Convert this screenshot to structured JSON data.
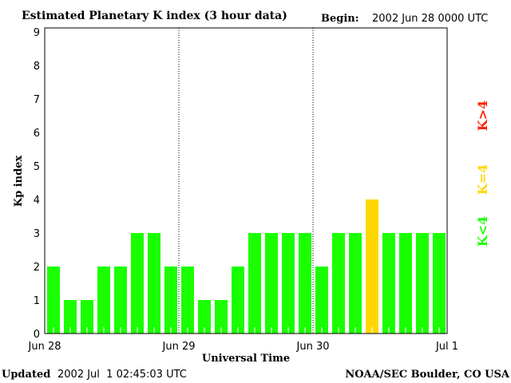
{
  "chart_data": {
    "type": "bar",
    "title": "Estimated Planetary K index (3 hour data)",
    "begin_label": "Begin:",
    "begin_value": "2002 Jun 28 0000 UTC",
    "xlabel": "Universal Time",
    "ylabel": "Kp index",
    "ylim": [
      0,
      9
    ],
    "yticks": [
      "0",
      "1",
      "2",
      "3",
      "4",
      "5",
      "6",
      "7",
      "8",
      "9"
    ],
    "xticks": [
      "Jun 28",
      "Jun 29",
      "Jun 30",
      "Jul 1"
    ],
    "values": [
      2,
      1,
      1,
      2,
      2,
      3,
      3,
      2,
      2,
      1,
      1,
      2,
      3,
      3,
      3,
      3,
      2,
      3,
      3,
      4,
      3,
      3,
      3,
      3
    ],
    "colors": {
      "low": "#1aff00",
      "equal": "#ffd700",
      "high": "#ff2000"
    },
    "legend": [
      {
        "label": "K<4",
        "color": "#1aff00"
      },
      {
        "label": "K=4",
        "color": "#ffd700"
      },
      {
        "label": "K>4",
        "color": "#ff2000"
      }
    ]
  },
  "footer": {
    "updated_label": "Updated",
    "updated_value": "2002 Jul  1 02:45:03 UTC",
    "source": "NOAA/SEC Boulder, CO USA"
  }
}
